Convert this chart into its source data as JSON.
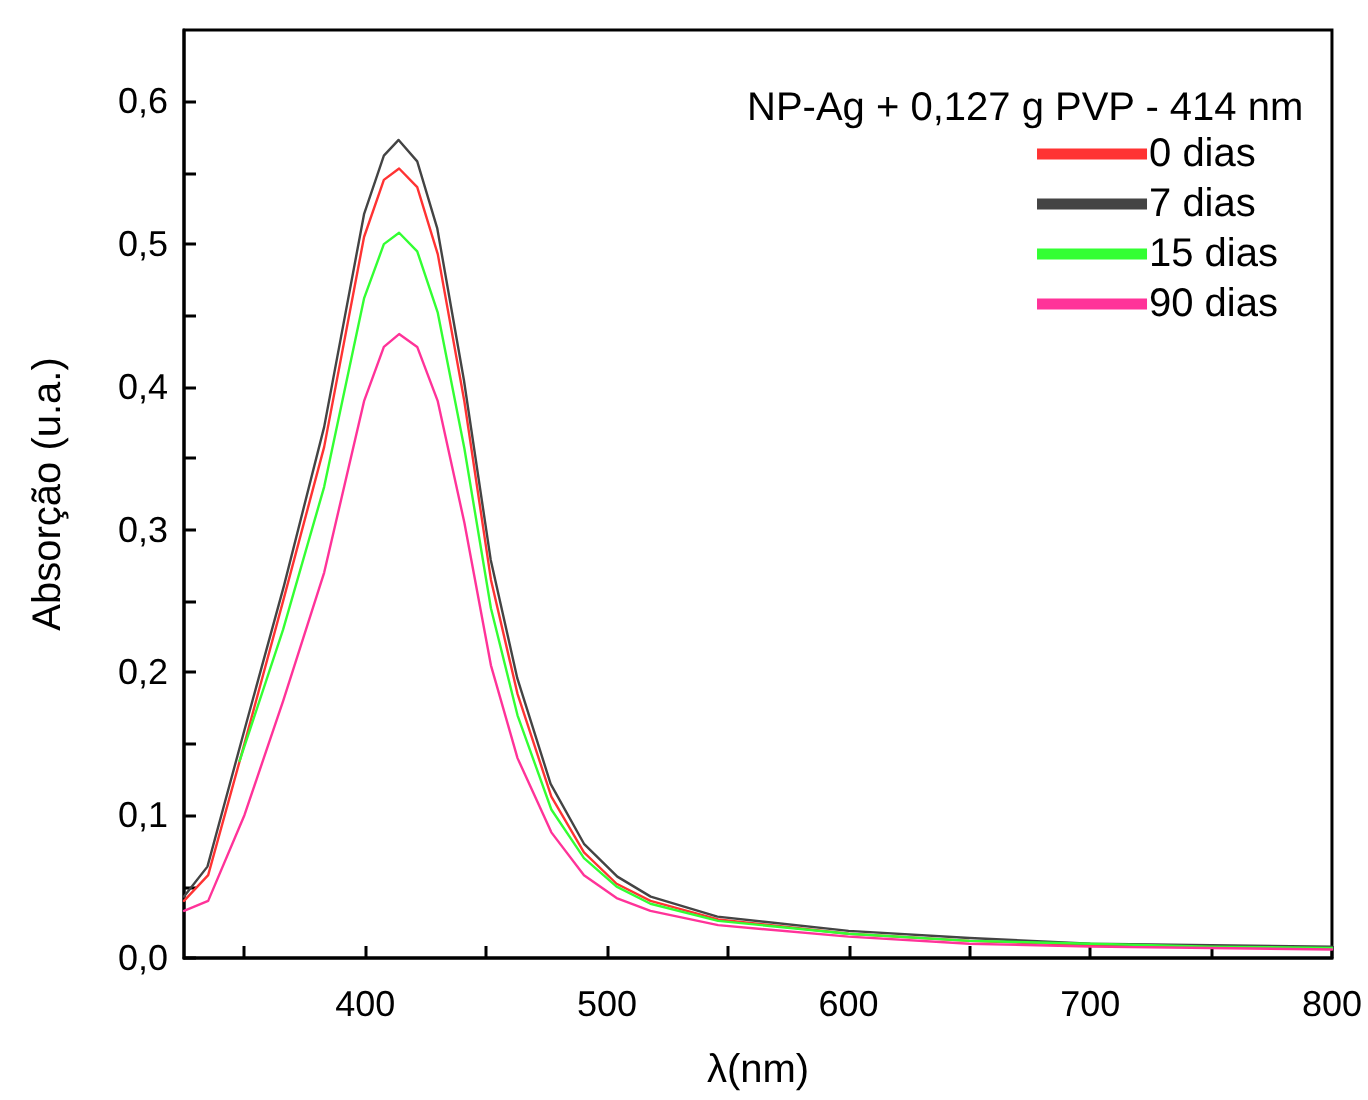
{
  "chart_data": {
    "type": "line",
    "xlabel": "λ(nm)",
    "ylabel": "Absorção (u.a.)",
    "legend_title": "NP-Ag + 0,127 g PVP - 414 nm",
    "legend": "top right",
    "grid": false,
    "marker": "none",
    "line_style": "solid",
    "xlim": [
      325,
      800
    ],
    "xticks": [
      {
        "value": 350,
        "label": null
      },
      400,
      {
        "value": 450,
        "label": null
      },
      500,
      {
        "value": 550,
        "label": null
      },
      600,
      {
        "value": 650,
        "label": null
      },
      700,
      {
        "value": 750,
        "label": null
      },
      800
    ],
    "ylim": [
      0,
      0.65
    ],
    "yticks": [
      {
        "value": 0,
        "label": "0,0"
      },
      {
        "value": 0.05,
        "label": null
      },
      {
        "value": 0.1,
        "label": "0,1"
      },
      {
        "value": 0.15,
        "label": null
      },
      {
        "value": 0.2,
        "label": "0,2"
      },
      {
        "value": 0.25,
        "label": null
      },
      {
        "value": 0.3,
        "label": "0,3"
      },
      {
        "value": 0.35,
        "label": null
      },
      {
        "value": 0.4,
        "label": "0,4"
      },
      {
        "value": 0.45,
        "label": null
      },
      {
        "value": 0.5,
        "label": "0,5"
      },
      {
        "value": 0.55,
        "label": null
      },
      {
        "value": 0.6,
        "label": "0,6"
      }
    ],
    "series": [
      {
        "name": "0 dias",
        "color": "#ff3333",
        "x": [
          325,
          335,
          350,
          366,
          383,
          399.5,
          407.7,
          414,
          421.5,
          430,
          441,
          452,
          463,
          477,
          490.5,
          504,
          518,
          546,
          600,
          650,
          700,
          750,
          800
        ],
        "values": [
          0.04,
          0.058,
          0.15,
          0.25,
          0.358,
          0.505,
          0.545,
          0.553,
          0.54,
          0.493,
          0.39,
          0.265,
          0.185,
          0.113,
          0.074,
          0.052,
          0.04,
          0.027,
          0.017,
          0.012,
          0.009,
          0.008,
          0.007
        ]
      },
      {
        "name": "7 dias",
        "color": "#444444",
        "x": [
          325,
          334.7,
          349.9,
          366.4,
          383,
          399.5,
          407.7,
          413.8,
          421.5,
          429.8,
          440.8,
          451.9,
          462.9,
          476.7,
          490.5,
          504.3,
          518.1,
          545.7,
          600,
          650,
          700,
          750,
          800
        ],
        "values": [
          0.043,
          0.064,
          0.159,
          0.261,
          0.372,
          0.521,
          0.562,
          0.573,
          0.558,
          0.511,
          0.405,
          0.279,
          0.196,
          0.122,
          0.08,
          0.057,
          0.043,
          0.029,
          0.019,
          0.014,
          0.01,
          0.009,
          0.008
        ]
      },
      {
        "name": "15 dias",
        "color": "#33ff33",
        "x": [
          348,
          366,
          383,
          399.5,
          407.7,
          414,
          421.5,
          430,
          441,
          452,
          463,
          477,
          490.5,
          504,
          518,
          546,
          600,
          650,
          700,
          750,
          800
        ],
        "values": [
          0.138,
          0.23,
          0.33,
          0.462,
          0.5,
          0.508,
          0.495,
          0.452,
          0.357,
          0.245,
          0.17,
          0.104,
          0.07,
          0.05,
          0.038,
          0.026,
          0.017,
          0.012,
          0.01,
          0.008,
          0.007
        ]
      },
      {
        "name": "90 dias",
        "color": "#ff3399",
        "x": [
          325,
          335,
          350,
          366,
          383,
          399.5,
          407.7,
          414,
          421.5,
          430,
          441,
          452,
          463,
          477,
          490.5,
          504,
          518,
          546,
          600,
          650,
          700,
          750,
          800
        ],
        "values": [
          0.033,
          0.04,
          0.1,
          0.18,
          0.27,
          0.39,
          0.428,
          0.437,
          0.428,
          0.39,
          0.305,
          0.205,
          0.14,
          0.088,
          0.058,
          0.042,
          0.033,
          0.023,
          0.015,
          0.01,
          0.008,
          0.007,
          0.006
        ]
      }
    ]
  }
}
